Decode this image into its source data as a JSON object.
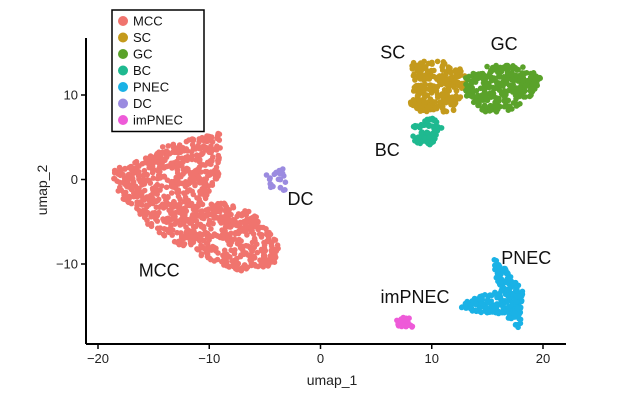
{
  "chart_data": {
    "type": "scatter",
    "title": "",
    "xlabel": "umap_1",
    "ylabel": "umap_2",
    "xlim": [
      -22,
      22
    ],
    "ylim": [
      -20,
      16
    ],
    "xticks": [
      -20,
      -10,
      0,
      10,
      20
    ],
    "yticks": [
      -10,
      0,
      10
    ],
    "grid": false,
    "legend_position": "top-left",
    "series": [
      {
        "name": "MCC",
        "color": "#f0746e",
        "centroid": [
          -13,
          -2
        ],
        "shape": [
          [
            -19,
            1
          ],
          [
            -17,
            2
          ],
          [
            -14,
            4
          ],
          [
            -11,
            5
          ],
          [
            -9,
            5.5
          ],
          [
            -9,
            1
          ],
          [
            -10,
            -2
          ],
          [
            -6,
            -4
          ],
          [
            -3.5,
            -8
          ],
          [
            -4,
            -10
          ],
          [
            -7,
            -11
          ],
          [
            -11,
            -9
          ],
          [
            -15,
            -6
          ],
          [
            -18,
            -2
          ]
        ]
      },
      {
        "name": "SC",
        "color": "#c49a1c",
        "centroid": [
          10.5,
          10.5
        ],
        "shape": [
          [
            8,
            14
          ],
          [
            11,
            14
          ],
          [
            13,
            13
          ],
          [
            13,
            11
          ],
          [
            12,
            8
          ],
          [
            9,
            8
          ],
          [
            8,
            9
          ],
          [
            8.5,
            11.5
          ]
        ]
      },
      {
        "name": "GC",
        "color": "#5aa22a",
        "centroid": [
          16,
          11
        ],
        "shape": [
          [
            13,
            12
          ],
          [
            15,
            13.5
          ],
          [
            18,
            13.5
          ],
          [
            20,
            12
          ],
          [
            19,
            10
          ],
          [
            17,
            8
          ],
          [
            14.5,
            8
          ],
          [
            13,
            10
          ]
        ]
      },
      {
        "name": "BC",
        "color": "#1fb990",
        "centroid": [
          9.5,
          5.5
        ],
        "shape": [
          [
            8,
            6
          ],
          [
            10,
            7.5
          ],
          [
            11,
            6
          ],
          [
            10,
            4
          ],
          [
            8.5,
            4.2
          ]
        ]
      },
      {
        "name": "PNEC",
        "color": "#1ab2e6",
        "centroid": [
          15.5,
          -13.5
        ],
        "shape": [
          [
            15.3,
            -9
          ],
          [
            16,
            -13
          ],
          [
            13,
            -14.5
          ],
          [
            12.5,
            -15.5
          ],
          [
            16.5,
            -16
          ],
          [
            18,
            -17.8
          ],
          [
            18.2,
            -13
          ],
          [
            17,
            -11
          ]
        ]
      },
      {
        "name": "DC",
        "color": "#9b8be0",
        "centroid": [
          -4,
          0
        ],
        "shape": [
          [
            -5,
            1
          ],
          [
            -3,
            1.5
          ],
          [
            -3,
            -1.5
          ],
          [
            -4.5,
            -1
          ]
        ]
      },
      {
        "name": "imPNEC",
        "color": "#ee5ad8",
        "centroid": [
          7.5,
          -16.8
        ],
        "shape": [
          [
            6.8,
            -16.3
          ],
          [
            8.3,
            -16.3
          ],
          [
            8.3,
            -17.5
          ],
          [
            6.8,
            -17.5
          ]
        ]
      }
    ],
    "annotations": [
      {
        "text": "MCC",
        "x": -14.5,
        "y": -11.5
      },
      {
        "text": "SC",
        "x": 6.5,
        "y": 14.3
      },
      {
        "text": "GC",
        "x": 16.5,
        "y": 15.3
      },
      {
        "text": "BC",
        "x": 6.0,
        "y": 2.8
      },
      {
        "text": "DC",
        "x": -1.8,
        "y": -3.0
      },
      {
        "text": "PNEC",
        "x": 18.5,
        "y": -10.0
      },
      {
        "text": "imPNEC",
        "x": 8.5,
        "y": -14.6
      }
    ]
  }
}
